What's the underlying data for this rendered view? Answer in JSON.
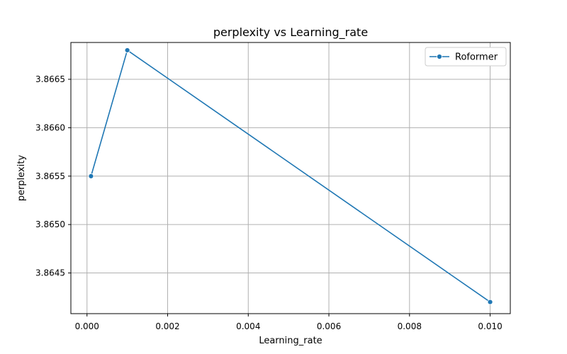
{
  "chart_data": {
    "type": "line",
    "title": "perplexity vs Learning_rate",
    "xlabel": "Learning_rate",
    "ylabel": "perplexity",
    "xlim": [
      -0.0004,
      0.0105
    ],
    "ylim": [
      3.86408,
      3.86688
    ],
    "xticks": [
      0.0,
      0.002,
      0.004,
      0.006,
      0.008,
      0.01
    ],
    "xtick_labels": [
      "0.000",
      "0.002",
      "0.004",
      "0.006",
      "0.008",
      "0.010"
    ],
    "yticks": [
      3.8645,
      3.865,
      3.8655,
      3.866,
      3.8665
    ],
    "ytick_labels": [
      "3.8645",
      "3.8650",
      "3.8655",
      "3.8660",
      "3.8665"
    ],
    "grid": true,
    "legend_position": "top-right",
    "series": [
      {
        "name": "Roformer",
        "color": "#1f77b4",
        "marker": "circle",
        "x": [
          0.0001,
          0.001,
          0.01
        ],
        "y": [
          3.8655,
          3.8668,
          3.8642
        ]
      }
    ]
  }
}
